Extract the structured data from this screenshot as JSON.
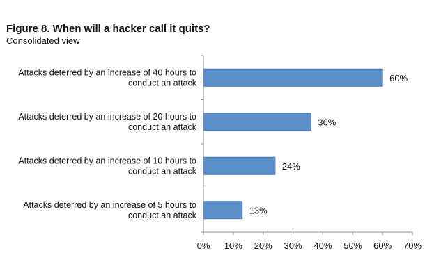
{
  "header": {
    "title": "Figure 8. When will a hacker call it quits?",
    "subtitle": "Consolidated view"
  },
  "chart_data": {
    "type": "bar",
    "orientation": "horizontal",
    "categories": [
      [
        "Attacks deterred by an increase of 40 hours to",
        "conduct an attack"
      ],
      [
        "Attacks deterred by an increase of 20 hours to",
        "conduct an attack"
      ],
      [
        "Attacks deterred by an increase of 10 hours to",
        "conduct an attack"
      ],
      [
        "Attacks deterred by an increase of 5 hours to",
        "conduct an attack"
      ]
    ],
    "values": [
      60,
      36,
      24,
      13
    ],
    "value_labels": [
      "60%",
      "36%",
      "24%",
      "13%"
    ],
    "xlim": [
      0,
      70
    ],
    "x_ticks": [
      "0%",
      "10%",
      "20%",
      "30%",
      "40%",
      "50%",
      "60%",
      "70%"
    ],
    "grid": false,
    "legend": "none",
    "bar_color": "#5b8fc9",
    "bar_edge_color": "#4a7bb5"
  }
}
